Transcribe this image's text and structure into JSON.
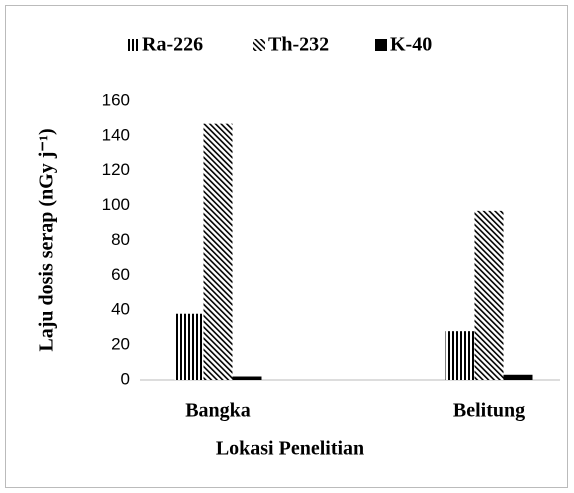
{
  "chart_data": {
    "type": "bar",
    "categories": [
      "Bangka",
      "Belitung"
    ],
    "series": [
      {
        "name": "Ra-226",
        "color": "#000000",
        "pattern": "vertical",
        "values": [
          38,
          28
        ]
      },
      {
        "name": "Th-232",
        "color": "#000000",
        "pattern": "diagonal",
        "values": [
          147,
          97
        ]
      },
      {
        "name": "K-40",
        "color": "#000000",
        "pattern": "solid",
        "values": [
          2,
          3
        ]
      }
    ],
    "ylabel": "Laju dosis serap (nGy j⁻¹)",
    "xlabel": "Lokasi Penelitian",
    "ylim": [
      0,
      160
    ],
    "yticks": [
      0,
      20,
      40,
      60,
      80,
      100,
      120,
      140,
      160
    ],
    "legend": "top"
  }
}
